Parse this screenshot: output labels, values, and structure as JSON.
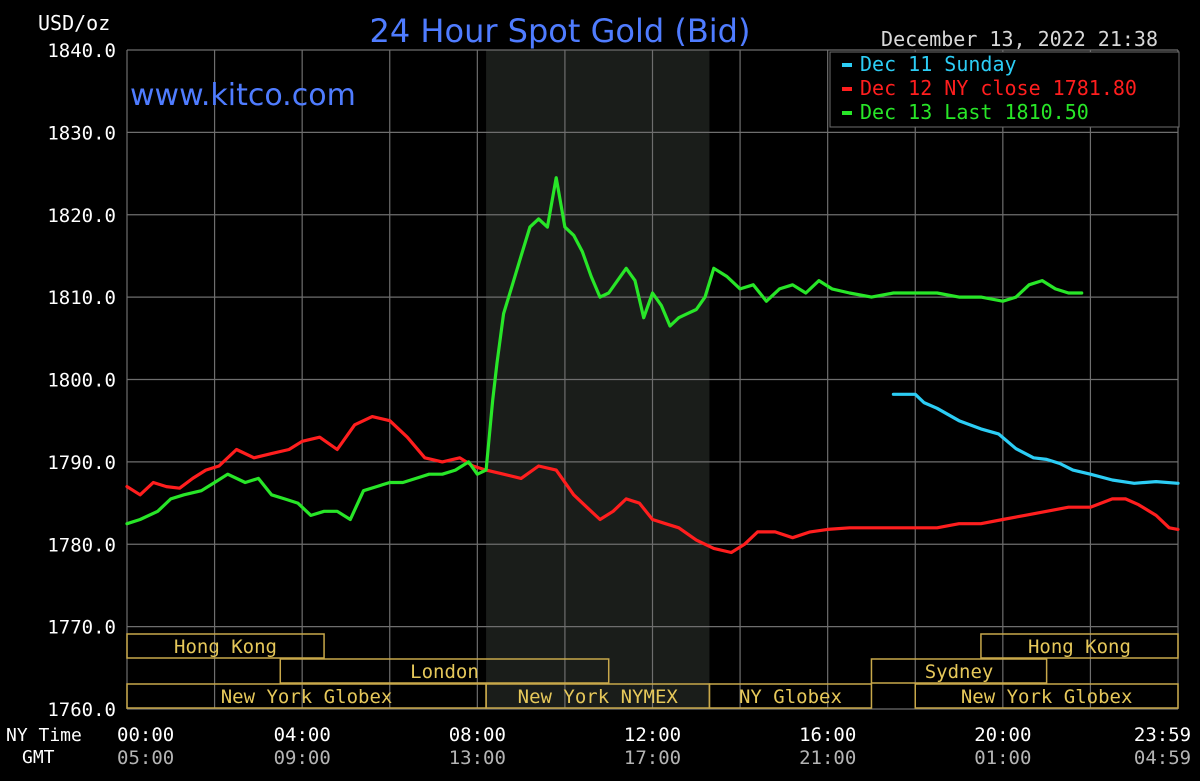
{
  "title": "24 Hour Spot Gold (Bid)",
  "unit_label": "USD/oz",
  "timestamp": "December 13, 2022 21:38",
  "watermark": "www.kitco.com",
  "row_labels": {
    "ny": "NY Time",
    "gmt": "GMT"
  },
  "colors": {
    "background": "#000000",
    "grid": "#6e6e6e",
    "axis_text": "#ffffff",
    "gmt_text": "#b4b4b4",
    "title": "#4f7cff",
    "session_shade": "#1a1d1a",
    "session_border": "#c8a84a",
    "session_text": "#e6c85a"
  },
  "legend": [
    {
      "label": "Dec 11 Sunday",
      "color": "#2ccdf5"
    },
    {
      "label": "Dec 12 NY close 1781.80",
      "color": "#ff1e1e"
    },
    {
      "label": "Dec 13 Last 1810.50",
      "color": "#28e628"
    }
  ],
  "sessions": [
    {
      "label": "Hong Kong",
      "start": 0,
      "end": 4.5
    },
    {
      "label": "London",
      "start": 3.5,
      "end": 11.0
    },
    {
      "label": "New York Globex",
      "start": 0,
      "end": 8.2
    },
    {
      "label": "New York NYMEX",
      "start": 8.2,
      "end": 13.3
    },
    {
      "label": "NY Globex",
      "start": 13.3,
      "end": 17.0
    },
    {
      "label": "New York Globex",
      "start": 18.0,
      "end": 24.0
    },
    {
      "label": "Hong Kong",
      "start": 19.5,
      "end": 24.0
    },
    {
      "label": "Sydney",
      "start": 17.0,
      "end": 21.0
    }
  ],
  "chart_data": {
    "type": "line",
    "title": "24 Hour Spot Gold (Bid)",
    "ylabel": "USD/oz",
    "xlabel": "",
    "ylim": [
      1760,
      1840
    ],
    "xlim": [
      0,
      24
    ],
    "grid": true,
    "legend_position": "top-right",
    "y_ticks": [
      "1840.0",
      "1830.0",
      "1820.0",
      "1810.0",
      "1800.0",
      "1790.0",
      "1780.0",
      "1770.0",
      "1760.0"
    ],
    "x_ticks_ny": [
      "00:00",
      "04:00",
      "08:00",
      "12:00",
      "16:00",
      "20:00",
      "23:59"
    ],
    "x_ticks_gmt": [
      "05:00",
      "09:00",
      "13:00",
      "17:00",
      "21:00",
      "01:00",
      "04:59"
    ],
    "x_tick_hours": [
      0,
      4,
      8,
      12,
      16,
      20,
      23.98
    ],
    "shaded_region": [
      8.2,
      13.3
    ],
    "series": [
      {
        "name": "Dec 11 Sunday",
        "x": [
          17.5,
          18.0,
          18.2,
          18.5,
          19.0,
          19.5,
          19.9,
          20.3,
          20.7,
          21.0,
          21.3,
          21.6,
          22.0,
          22.5,
          23.0,
          23.5,
          24.0
        ],
        "y": [
          1798.2,
          1798.2,
          1797.2,
          1796.5,
          1795.0,
          1794.0,
          1793.4,
          1791.6,
          1790.5,
          1790.3,
          1789.8,
          1789.0,
          1788.5,
          1787.8,
          1787.4,
          1787.6,
          1787.4
        ]
      },
      {
        "name": "Dec 12 NY close 1781.80",
        "x": [
          0,
          0.3,
          0.6,
          0.9,
          1.2,
          1.5,
          1.8,
          2.1,
          2.5,
          2.9,
          3.3,
          3.7,
          4.0,
          4.4,
          4.8,
          5.2,
          5.6,
          6.0,
          6.4,
          6.8,
          7.2,
          7.6,
          7.9,
          8.2,
          8.6,
          9.0,
          9.4,
          9.8,
          10.2,
          10.5,
          10.8,
          11.1,
          11.4,
          11.7,
          12.0,
          12.3,
          12.6,
          13.0,
          13.4,
          13.8,
          14.1,
          14.4,
          14.8,
          15.2,
          15.6,
          16.0,
          16.5,
          17.0,
          17.5,
          18.0,
          18.5,
          19.0,
          19.5,
          20.0,
          20.5,
          21.0,
          21.5,
          22.0,
          22.5,
          22.8,
          23.1,
          23.5,
          23.8,
          24.0
        ],
        "y": [
          1787.0,
          1786.0,
          1787.5,
          1787.0,
          1786.8,
          1788.0,
          1789.0,
          1789.5,
          1791.5,
          1790.5,
          1791.0,
          1791.5,
          1792.5,
          1793.0,
          1791.5,
          1794.5,
          1795.5,
          1795.0,
          1793.0,
          1790.5,
          1790.0,
          1790.5,
          1789.5,
          1789.0,
          1788.5,
          1788.0,
          1789.5,
          1789.0,
          1786.0,
          1784.5,
          1783.0,
          1784.0,
          1785.5,
          1785.0,
          1783.0,
          1782.5,
          1782.0,
          1780.5,
          1779.5,
          1779.0,
          1780.0,
          1781.5,
          1781.5,
          1780.8,
          1781.5,
          1781.8,
          1782.0,
          1782.0,
          1782.0,
          1782.0,
          1782.0,
          1782.5,
          1782.5,
          1783.0,
          1783.5,
          1784.0,
          1784.5,
          1784.5,
          1785.5,
          1785.5,
          1784.8,
          1783.5,
          1782.0,
          1781.8
        ]
      },
      {
        "name": "Dec 13 Last 1810.50",
        "x": [
          0,
          0.3,
          0.7,
          1.0,
          1.3,
          1.7,
          2.0,
          2.3,
          2.7,
          3.0,
          3.3,
          3.6,
          3.9,
          4.2,
          4.5,
          4.8,
          5.1,
          5.4,
          5.7,
          6.0,
          6.3,
          6.6,
          6.9,
          7.2,
          7.5,
          7.8,
          8.0,
          8.2,
          8.35,
          8.45,
          8.6,
          8.8,
          9.0,
          9.2,
          9.4,
          9.6,
          9.8,
          10.0,
          10.2,
          10.4,
          10.6,
          10.8,
          11.0,
          11.2,
          11.4,
          11.6,
          11.8,
          12.0,
          12.2,
          12.4,
          12.6,
          12.8,
          13.0,
          13.2,
          13.4,
          13.7,
          14.0,
          14.3,
          14.6,
          14.9,
          15.2,
          15.5,
          15.8,
          16.1,
          16.5,
          17.0,
          17.5,
          18.0,
          18.5,
          19.0,
          19.5,
          20.0,
          20.3,
          20.6,
          20.9,
          21.2,
          21.5,
          21.8
        ],
        "y": [
          1782.5,
          1783.0,
          1784.0,
          1785.5,
          1786.0,
          1786.5,
          1787.5,
          1788.5,
          1787.5,
          1788.0,
          1786.0,
          1785.5,
          1785.0,
          1783.5,
          1784.0,
          1784.0,
          1783.0,
          1786.5,
          1787.0,
          1787.5,
          1787.5,
          1788.0,
          1788.5,
          1788.5,
          1789.0,
          1790.0,
          1788.5,
          1789.0,
          1797.5,
          1802.0,
          1808.0,
          1811.5,
          1815.0,
          1818.5,
          1819.5,
          1818.5,
          1824.5,
          1818.5,
          1817.5,
          1815.5,
          1812.5,
          1810.0,
          1810.5,
          1812.0,
          1813.5,
          1812.0,
          1807.5,
          1810.5,
          1809.0,
          1806.5,
          1807.5,
          1808.0,
          1808.5,
          1810.0,
          1813.5,
          1812.5,
          1811.0,
          1811.5,
          1809.5,
          1811.0,
          1811.5,
          1810.5,
          1812.0,
          1811.0,
          1810.5,
          1810.0,
          1810.5,
          1810.5,
          1810.5,
          1810.0,
          1810.0,
          1809.5,
          1810.0,
          1811.5,
          1812.0,
          1811.0,
          1810.5,
          1810.5
        ]
      }
    ]
  }
}
